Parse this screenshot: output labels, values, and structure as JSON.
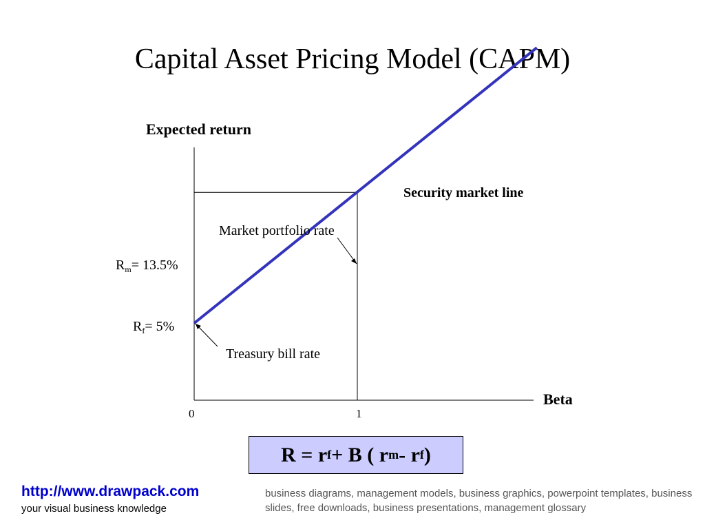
{
  "title": "Capital Asset Pricing Model (CAPM)",
  "chart_data": {
    "type": "line",
    "xlabel": "Beta",
    "ylabel": "Expected return",
    "x_ticks": [
      "0",
      "1"
    ],
    "series": [
      {
        "name": "Security market line",
        "x": [
          0,
          1,
          2.1
        ],
        "y": [
          5,
          13.5,
          22.9
        ]
      }
    ],
    "annotations": {
      "market_portfolio": "Market portfolio rate",
      "treasury_bill": "Treasury bill rate"
    },
    "rf": {
      "symbol": "R",
      "sub": "f",
      "text": "= 5%",
      "value": 5
    },
    "rm": {
      "symbol": "R",
      "sub": "m",
      "text": "= 13.5%",
      "value": 13.5,
      "beta": 1
    },
    "colors": {
      "line": "#3333bb",
      "axes": "#000000"
    }
  },
  "formula": {
    "lead": "R = r",
    "sub1": "f",
    "mid": " + B ( r",
    "sub2": "m",
    "minus": " - r",
    "sub3": "f",
    "tail": " )",
    "box_color": "#ccccff"
  },
  "footer": {
    "url": "http://www.drawpack.com",
    "tagline": "your visual business knowledge",
    "keywords": "business diagrams, management models, business graphics, powerpoint templates, business slides, free downloads, business presentations, management glossary"
  }
}
